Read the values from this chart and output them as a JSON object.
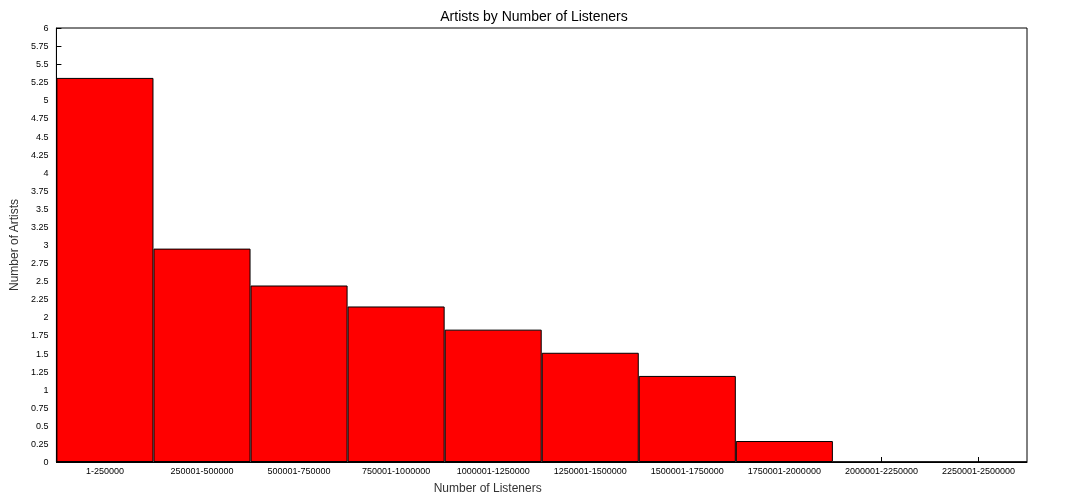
{
  "chart_data": {
    "type": "bar",
    "title": "Artists by Number of Listeners",
    "xlabel": "Number of Listeners",
    "ylabel": "Number of Artists",
    "categories": [
      "1-250000",
      "250001-500000",
      "500001-750000",
      "750001-1000000",
      "1000001-1250000",
      "1250001-1500000",
      "1500001-1750000",
      "1750001-2000000",
      "2000001-2250000",
      "2250001-2500000"
    ],
    "values": [
      5.31,
      2.95,
      2.44,
      2.15,
      1.83,
      1.51,
      1.19,
      0.29,
      0,
      0
    ],
    "color": "#ff0000",
    "ylim": [
      0,
      6
    ],
    "yticks": [
      0,
      0.25,
      0.5,
      0.75,
      1,
      1.25,
      1.5,
      1.75,
      2,
      2.25,
      2.5,
      2.75,
      3,
      3.25,
      3.5,
      3.75,
      4,
      4.25,
      4.5,
      4.75,
      5,
      5.25,
      5.5,
      5.75,
      6
    ],
    "grid": false
  }
}
